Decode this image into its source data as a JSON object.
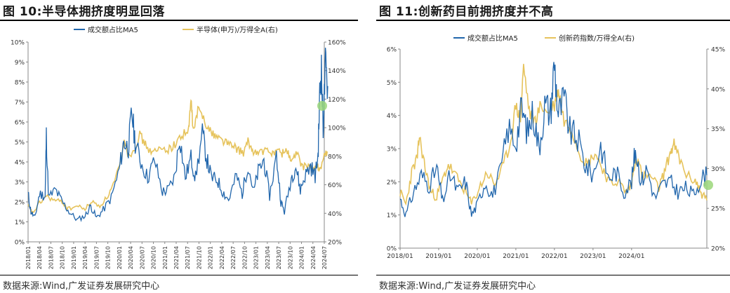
{
  "left": {
    "title": "图 10:半导体拥挤度明显回落",
    "source": "数据来源:Wind,广发证券发展研究中心",
    "chart_data": {
      "type": "line",
      "legend_position": "top-center",
      "grid": false,
      "series": [
        {
          "name": "成交额占比MA5",
          "axis": "left",
          "color": "#2166ac"
        },
        {
          "name": "半导体(申万)/万得全A(右)",
          "axis": "right",
          "color": "#e6c35c"
        }
      ],
      "left_axis": {
        "min": 0,
        "max": 10,
        "ticks": [
          "0%",
          "1%",
          "2%",
          "3%",
          "4%",
          "5%",
          "6%",
          "7%",
          "8%",
          "9%",
          "10%"
        ]
      },
      "right_axis": {
        "min": 20,
        "max": 160,
        "ticks": [
          "20%",
          "40%",
          "60%",
          "80%",
          "100%",
          "120%",
          "140%",
          "160%"
        ]
      },
      "x_labels": [
        "2018/01",
        "2018/04",
        "2018/07",
        "2018/10",
        "2019/01",
        "2019/04",
        "2019/07",
        "2019/10",
        "2020/01",
        "2020/04",
        "2020/07",
        "2020/10",
        "2021/01",
        "2021/04",
        "2021/07",
        "2021/10",
        "2022/01",
        "2022/04",
        "2022/07",
        "2022/10",
        "2023/01",
        "2023/04",
        "2023/07",
        "2023/10",
        "2024/01",
        "2024/04",
        "2024/07"
      ],
      "series1_keypoints": [
        [
          0,
          2.4
        ],
        [
          0.25,
          1.5
        ],
        [
          0.6,
          1.2
        ],
        [
          1.0,
          2.4
        ],
        [
          1.5,
          2.3
        ],
        [
          1.6,
          5.3
        ],
        [
          1.8,
          2.2
        ],
        [
          2.4,
          2.6
        ],
        [
          3,
          2.0
        ],
        [
          3.6,
          1.5
        ],
        [
          4.3,
          1.1
        ],
        [
          5,
          1.3
        ],
        [
          5.5,
          1.8
        ],
        [
          6,
          1.2
        ],
        [
          6.6,
          1.6
        ],
        [
          7.3,
          2.2
        ],
        [
          8,
          3.6
        ],
        [
          8.4,
          5.0
        ],
        [
          8.8,
          4.7
        ],
        [
          9.1,
          6.5
        ],
        [
          9.4,
          5.0
        ],
        [
          9.9,
          4.0
        ],
        [
          10.5,
          3.2
        ],
        [
          11.1,
          4.1
        ],
        [
          11.8,
          2.5
        ],
        [
          12.3,
          2.6
        ],
        [
          12.9,
          3.3
        ],
        [
          13.3,
          5.3
        ],
        [
          13.8,
          3.2
        ],
        [
          14.3,
          4.2
        ],
        [
          14.7,
          3.2
        ],
        [
          15.3,
          5.4
        ],
        [
          15.7,
          4.1
        ],
        [
          16.1,
          3.2
        ],
        [
          16.6,
          3.1
        ],
        [
          17.1,
          2.5
        ],
        [
          17.6,
          2.1
        ],
        [
          18.3,
          3.3
        ],
        [
          18.8,
          2.4
        ],
        [
          19.3,
          3.9
        ],
        [
          19.8,
          2.5
        ],
        [
          20.2,
          3.5
        ],
        [
          20.7,
          4.1
        ],
        [
          21.2,
          2.3
        ],
        [
          21.8,
          4.3
        ],
        [
          22.2,
          2.0
        ],
        [
          22.5,
          1.5
        ],
        [
          23.1,
          3.2
        ],
        [
          23.5,
          3.8
        ],
        [
          23.9,
          2.6
        ],
        [
          24.3,
          3.3
        ],
        [
          24.8,
          3.8
        ],
        [
          25.2,
          3.3
        ],
        [
          25.45,
          4.3
        ],
        [
          25.6,
          7.4
        ],
        [
          25.75,
          8.6
        ],
        [
          25.9,
          5.7
        ],
        [
          26.1,
          8.8
        ],
        [
          26.3,
          7.8
        ]
      ],
      "series2_keypoints": [
        [
          0,
          45
        ],
        [
          0.4,
          40
        ],
        [
          1,
          47
        ],
        [
          1.6,
          52
        ],
        [
          2.3,
          49
        ],
        [
          3,
          48
        ],
        [
          3.5,
          43
        ],
        [
          4.3,
          45
        ],
        [
          5,
          43
        ],
        [
          5.6,
          48
        ],
        [
          6.3,
          45
        ],
        [
          7,
          52
        ],
        [
          7.6,
          62
        ],
        [
          8.1,
          75
        ],
        [
          8.5,
          92
        ],
        [
          8.8,
          80
        ],
        [
          9.3,
          85
        ],
        [
          9.8,
          95
        ],
        [
          10.3,
          88
        ],
        [
          10.9,
          82
        ],
        [
          11.6,
          85
        ],
        [
          12.3,
          85
        ],
        [
          12.9,
          88
        ],
        [
          13.5,
          95
        ],
        [
          14.1,
          98
        ],
        [
          14.3,
          120
        ],
        [
          14.5,
          97
        ],
        [
          14.9,
          112
        ],
        [
          15.4,
          108
        ],
        [
          15.9,
          98
        ],
        [
          16.4,
          95
        ],
        [
          16.9,
          92
        ],
        [
          17.4,
          90
        ],
        [
          17.9,
          87
        ],
        [
          18.4,
          85
        ],
        [
          18.9,
          82
        ],
        [
          19.3,
          90
        ],
        [
          19.7,
          84
        ],
        [
          20.2,
          82
        ],
        [
          20.7,
          84
        ],
        [
          21.3,
          82
        ],
        [
          21.8,
          84
        ],
        [
          22.3,
          82
        ],
        [
          22.7,
          85
        ],
        [
          23.1,
          76
        ],
        [
          23.6,
          82
        ],
        [
          24.1,
          72
        ],
        [
          24.6,
          74
        ],
        [
          25,
          70
        ],
        [
          25.4,
          73
        ],
        [
          25.6,
          71
        ],
        [
          26.0,
          80
        ],
        [
          26.3,
          83
        ]
      ]
    }
  },
  "right": {
    "title": "图 11:创新药目前拥挤度并不高",
    "source": "数据来源:Wind,广发证券发展研究中心",
    "chart_data": {
      "type": "line",
      "legend_position": "top-center",
      "grid": false,
      "series": [
        {
          "name": "成交额占比MA5",
          "axis": "left",
          "color": "#2166ac"
        },
        {
          "name": "创新药指数/万得全A(右)",
          "axis": "right",
          "color": "#e6c35c"
        }
      ],
      "left_axis": {
        "min": 0,
        "max": 6,
        "ticks": [
          "0%",
          "1%",
          "2%",
          "3%",
          "4%",
          "5%",
          "6%"
        ]
      },
      "right_axis": {
        "min": 20,
        "max": 45,
        "ticks": [
          "20%",
          "25%",
          "30%",
          "35%",
          "40%",
          "45%"
        ]
      },
      "x_labels": [
        "2018/01",
        "2019/01",
        "2020/01",
        "2021/01",
        "2022/01",
        "2023/01",
        "2024/01"
      ],
      "series1_keypoints": [
        [
          0,
          1.5
        ],
        [
          0.15,
          1.0
        ],
        [
          0.35,
          1.7
        ],
        [
          0.55,
          2.2
        ],
        [
          0.75,
          1.9
        ],
        [
          0.95,
          2.4
        ],
        [
          1.1,
          1.4
        ],
        [
          1.3,
          2.2
        ],
        [
          1.5,
          1.7
        ],
        [
          1.7,
          2.0
        ],
        [
          1.85,
          1.0
        ],
        [
          2.0,
          1.3
        ],
        [
          2.2,
          2.0
        ],
        [
          2.4,
          1.6
        ],
        [
          2.6,
          2.3
        ],
        [
          2.8,
          3.6
        ],
        [
          3.0,
          3.2
        ],
        [
          3.15,
          4.2
        ],
        [
          3.3,
          3.5
        ],
        [
          3.45,
          4.1
        ],
        [
          3.6,
          3.0
        ],
        [
          3.75,
          4.3
        ],
        [
          3.9,
          4.1
        ],
        [
          4.0,
          5.6
        ],
        [
          4.1,
          4.0
        ],
        [
          4.25,
          4.5
        ],
        [
          4.4,
          3.5
        ],
        [
          4.6,
          3.3
        ],
        [
          4.8,
          2.5
        ],
        [
          5.0,
          2.2
        ],
        [
          5.2,
          3.1
        ],
        [
          5.4,
          2.1
        ],
        [
          5.6,
          2.3
        ],
        [
          5.8,
          1.7
        ],
        [
          6.0,
          2.0
        ],
        [
          6.1,
          3.0
        ],
        [
          6.25,
          2.0
        ],
        [
          6.4,
          2.4
        ],
        [
          6.6,
          1.5
        ],
        [
          6.8,
          1.9
        ],
        [
          7.0,
          2.0
        ],
        [
          7.2,
          1.7
        ],
        [
          7.4,
          1.8
        ],
        [
          7.6,
          1.6
        ],
        [
          7.8,
          2.1
        ],
        [
          7.95,
          2.2
        ]
      ],
      "series2_keypoints": [
        [
          0,
          27.0
        ],
        [
          0.15,
          25.5
        ],
        [
          0.3,
          29.5
        ],
        [
          0.45,
          31.5
        ],
        [
          0.5,
          34.0
        ],
        [
          0.65,
          30.0
        ],
        [
          0.8,
          27.0
        ],
        [
          0.95,
          26.5
        ],
        [
          1.1,
          28.5
        ],
        [
          1.25,
          30.5
        ],
        [
          1.45,
          29.0
        ],
        [
          1.65,
          27.5
        ],
        [
          1.85,
          25.5
        ],
        [
          2.05,
          27.5
        ],
        [
          2.25,
          29.5
        ],
        [
          2.45,
          28.0
        ],
        [
          2.65,
          30.0
        ],
        [
          2.85,
          33.0
        ],
        [
          3.0,
          38.0
        ],
        [
          3.12,
          36.0
        ],
        [
          3.2,
          43.0
        ],
        [
          3.35,
          37.0
        ],
        [
          3.5,
          36.0
        ],
        [
          3.65,
          38.0
        ],
        [
          3.8,
          37.0
        ],
        [
          4.0,
          38.0
        ],
        [
          4.1,
          40.0
        ],
        [
          4.25,
          36.0
        ],
        [
          4.45,
          35.0
        ],
        [
          4.65,
          32.0
        ],
        [
          4.85,
          30.5
        ],
        [
          5.05,
          32.0
        ],
        [
          5.25,
          30.0
        ],
        [
          5.45,
          28.0
        ],
        [
          5.65,
          28.5
        ],
        [
          5.85,
          27.0
        ],
        [
          6.0,
          28.0
        ],
        [
          6.1,
          31.5
        ],
        [
          6.3,
          29.0
        ],
        [
          6.5,
          29.0
        ],
        [
          6.7,
          27.5
        ],
        [
          6.85,
          29.5
        ],
        [
          7.0,
          32.0
        ],
        [
          7.1,
          33.0
        ],
        [
          7.25,
          31.0
        ],
        [
          7.45,
          29.0
        ],
        [
          7.65,
          28.5
        ],
        [
          7.8,
          27.0
        ],
        [
          7.95,
          26.0
        ]
      ]
    }
  },
  "marker_color": "#9bd77a"
}
